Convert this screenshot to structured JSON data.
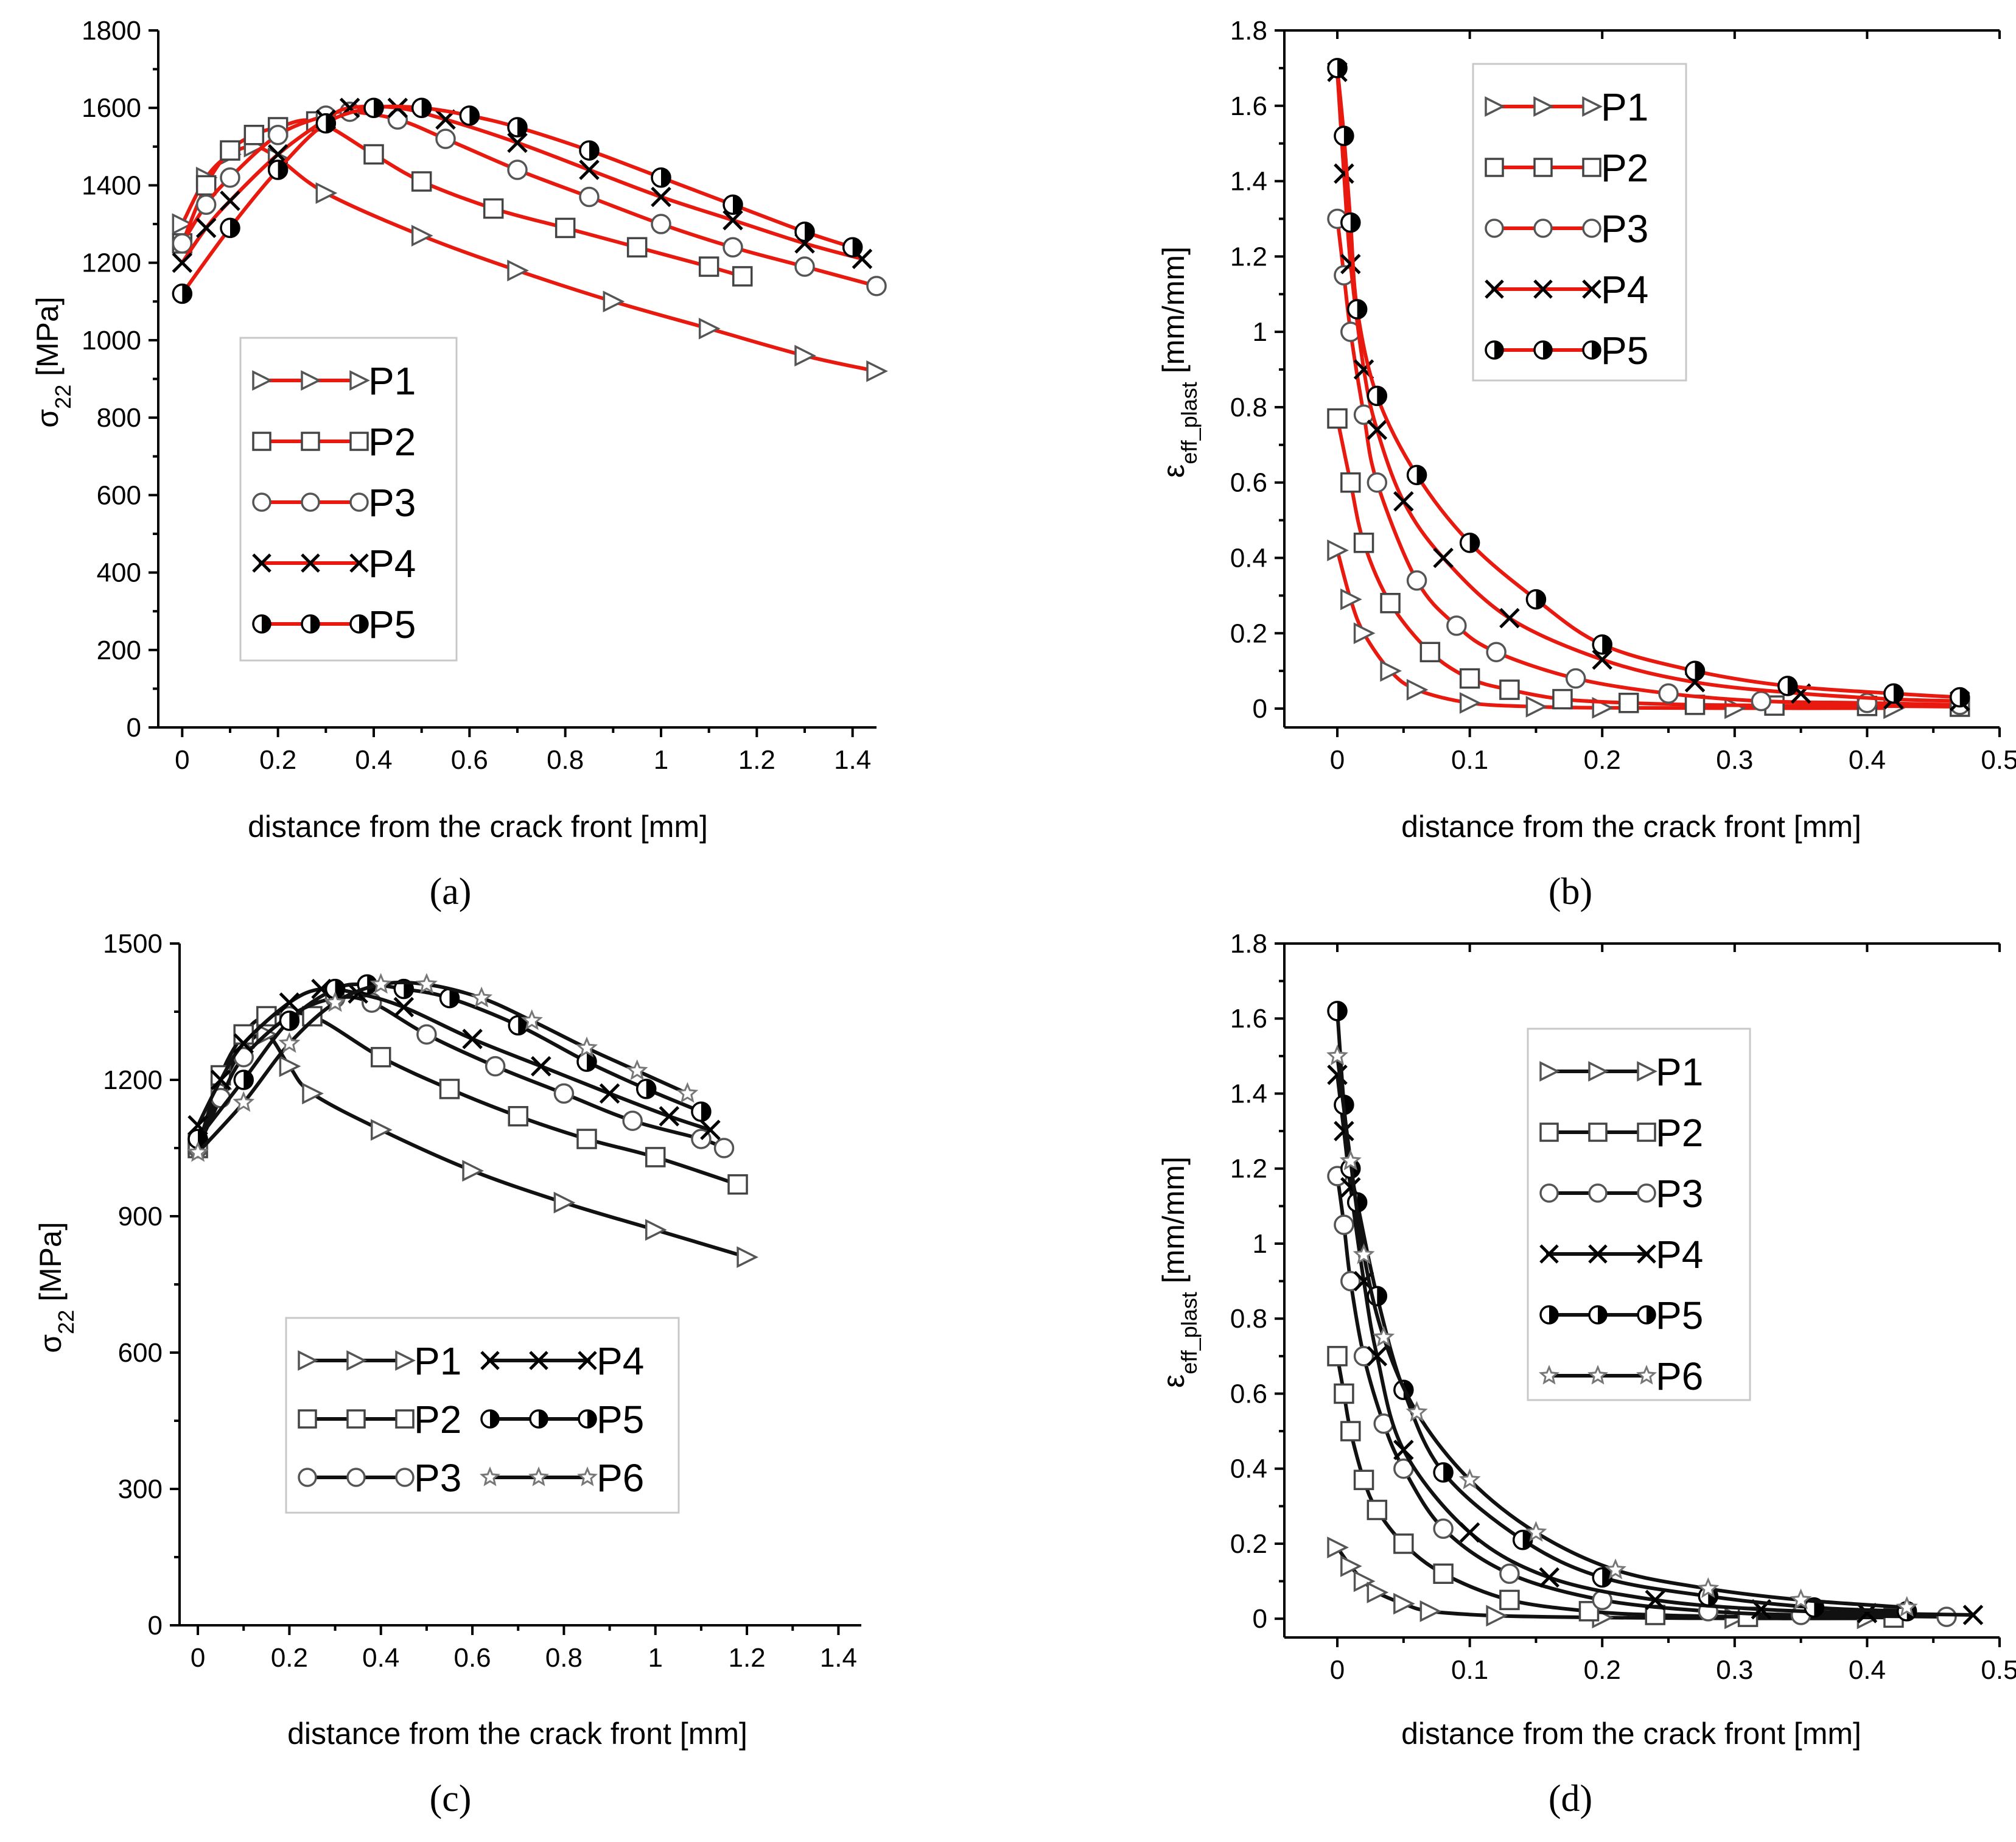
{
  "figure": {
    "background": "#ffffff"
  },
  "panels": [
    {
      "id": "a",
      "label": "(a)",
      "color": "#e8190f",
      "xlabel": "distance from the crack front [mm]",
      "ylabel_main": "σ",
      "ylabel_sub": "22",
      "ylabel_tail": " [MPa]",
      "xticks": [
        "0",
        "0.2",
        "0.4",
        "0.6",
        "0.8",
        "1",
        "1.2",
        "1.4"
      ],
      "yticks": [
        "0",
        "200",
        "400",
        "600",
        "800",
        "1000",
        "1200",
        "1400",
        "1600",
        "1800"
      ],
      "legend_items": [
        "P1",
        "P2",
        "P3",
        "P4",
        "P5"
      ]
    },
    {
      "id": "b",
      "label": "(b)",
      "color": "#e8190f",
      "xlabel": "distance from the crack front [mm]",
      "ylabel_main": "ε",
      "ylabel_sub": "eff_plast",
      "ylabel_tail": " [mm/mm]",
      "xticks": [
        "0",
        "0.1",
        "0.2",
        "0.3",
        "0.4",
        "0.5"
      ],
      "yticks": [
        "0",
        "0.2",
        "0.4",
        "0.6",
        "0.8",
        "1",
        "1.2",
        "1.4",
        "1.6",
        "1.8"
      ],
      "legend_items": [
        "P1",
        "P2",
        "P3",
        "P4",
        "P5"
      ]
    },
    {
      "id": "c",
      "label": "(c)",
      "color": "#111111",
      "xlabel": "distance from the crack front [mm]",
      "ylabel_main": "σ",
      "ylabel_sub": "22",
      "ylabel_tail": " [MPa]",
      "xticks": [
        "0",
        "0.2",
        "0.4",
        "0.6",
        "0.8",
        "1",
        "1.2",
        "1.4"
      ],
      "yticks": [
        "0",
        "300",
        "600",
        "900",
        "1200",
        "1500"
      ],
      "legend_items": [
        "P1",
        "P4",
        "P2",
        "P5",
        "P3",
        "P6"
      ]
    },
    {
      "id": "d",
      "label": "(d)",
      "color": "#111111",
      "xlabel": "distance from the crack front [mm]",
      "ylabel_main": "ε",
      "ylabel_sub": "eff_plast",
      "ylabel_tail": " [mm/mm]",
      "xticks": [
        "0",
        "0.1",
        "0.2",
        "0.3",
        "0.4",
        "0.5"
      ],
      "yticks": [
        "0",
        "0.2",
        "0.4",
        "0.6",
        "0.8",
        "1",
        "1.2",
        "1.4",
        "1.6",
        "1.8"
      ],
      "legend_items": [
        "P1",
        "P2",
        "P3",
        "P4",
        "P5",
        "P6"
      ]
    }
  ],
  "chart_data": [
    {
      "panel": "a",
      "type": "line",
      "title": "",
      "xlabel": "distance from the crack front [mm]",
      "ylabel": "σ22 [MPa]",
      "xlim": [
        -0.05,
        1.45
      ],
      "ylim": [
        0,
        1800
      ],
      "legend": "center-left",
      "series": [
        {
          "name": "P1",
          "marker": "triangle-right",
          "x": [
            0,
            0.05,
            0.1,
            0.15,
            0.2,
            0.3,
            0.5,
            0.7,
            0.9,
            1.1,
            1.3,
            1.45
          ],
          "y": [
            1300,
            1420,
            1480,
            1500,
            1470,
            1380,
            1270,
            1180,
            1100,
            1030,
            960,
            920
          ]
        },
        {
          "name": "P2",
          "marker": "square",
          "x": [
            0,
            0.05,
            0.1,
            0.15,
            0.2,
            0.28,
            0.4,
            0.5,
            0.65,
            0.8,
            0.95,
            1.1,
            1.17
          ],
          "y": [
            1250,
            1400,
            1490,
            1530,
            1550,
            1565,
            1480,
            1410,
            1340,
            1290,
            1240,
            1190,
            1165
          ]
        },
        {
          "name": "P3",
          "marker": "circle",
          "x": [
            0,
            0.05,
            0.1,
            0.2,
            0.3,
            0.35,
            0.45,
            0.55,
            0.7,
            0.85,
            1,
            1.15,
            1.3,
            1.45
          ],
          "y": [
            1250,
            1350,
            1420,
            1530,
            1580,
            1590,
            1570,
            1520,
            1440,
            1370,
            1300,
            1240,
            1190,
            1140
          ]
        },
        {
          "name": "P4",
          "marker": "x",
          "x": [
            0,
            0.05,
            0.1,
            0.2,
            0.3,
            0.35,
            0.45,
            0.55,
            0.7,
            0.85,
            1,
            1.15,
            1.3,
            1.42
          ],
          "y": [
            1200,
            1290,
            1360,
            1480,
            1570,
            1600,
            1600,
            1570,
            1510,
            1440,
            1370,
            1310,
            1250,
            1210
          ]
        },
        {
          "name": "P5",
          "marker": "half-circle",
          "x": [
            0,
            0.1,
            0.2,
            0.3,
            0.4,
            0.5,
            0.6,
            0.7,
            0.85,
            1,
            1.15,
            1.3,
            1.4
          ],
          "y": [
            1120,
            1290,
            1440,
            1560,
            1600,
            1600,
            1580,
            1550,
            1490,
            1420,
            1350,
            1280,
            1240
          ]
        }
      ]
    },
    {
      "panel": "b",
      "type": "line",
      "title": "",
      "xlabel": "distance from the crack front [mm]",
      "ylabel": "εeff_plast [mm/mm]",
      "xlim": [
        -0.04,
        0.5
      ],
      "ylim": [
        -0.05,
        1.8
      ],
      "legend": "top-center",
      "series": [
        {
          "name": "P1",
          "marker": "triangle-right",
          "x": [
            0,
            0.01,
            0.02,
            0.04,
            0.06,
            0.1,
            0.15,
            0.2,
            0.3,
            0.42
          ],
          "y": [
            0.42,
            0.29,
            0.2,
            0.1,
            0.05,
            0.015,
            0.005,
            0.002,
            0.001,
            0.001
          ]
        },
        {
          "name": "P2",
          "marker": "square",
          "x": [
            0,
            0.01,
            0.02,
            0.04,
            0.07,
            0.1,
            0.13,
            0.17,
            0.22,
            0.27,
            0.33,
            0.4,
            0.47
          ],
          "y": [
            0.77,
            0.6,
            0.44,
            0.28,
            0.15,
            0.08,
            0.05,
            0.025,
            0.015,
            0.01,
            0.008,
            0.007,
            0.005
          ]
        },
        {
          "name": "P3",
          "marker": "circle",
          "x": [
            0,
            0.005,
            0.01,
            0.02,
            0.03,
            0.06,
            0.09,
            0.12,
            0.18,
            0.25,
            0.32,
            0.4,
            0.47
          ],
          "y": [
            1.3,
            1.15,
            1.0,
            0.78,
            0.6,
            0.34,
            0.22,
            0.15,
            0.08,
            0.04,
            0.02,
            0.015,
            0.01
          ]
        },
        {
          "name": "P4",
          "marker": "x",
          "x": [
            0,
            0.005,
            0.01,
            0.02,
            0.03,
            0.05,
            0.08,
            0.13,
            0.2,
            0.27,
            0.35,
            0.42,
            0.47
          ],
          "y": [
            1.69,
            1.42,
            1.18,
            0.9,
            0.74,
            0.55,
            0.4,
            0.24,
            0.13,
            0.07,
            0.04,
            0.025,
            0.02
          ]
        },
        {
          "name": "P5",
          "marker": "half-circle",
          "x": [
            0,
            0.005,
            0.01,
            0.015,
            0.03,
            0.06,
            0.1,
            0.15,
            0.2,
            0.27,
            0.34,
            0.42,
            0.47
          ],
          "y": [
            1.7,
            1.52,
            1.29,
            1.06,
            0.83,
            0.62,
            0.44,
            0.29,
            0.17,
            0.1,
            0.06,
            0.04,
            0.03
          ]
        }
      ]
    },
    {
      "panel": "c",
      "type": "line",
      "title": "",
      "xlabel": "distance from the crack front [mm]",
      "ylabel": "σ22 [MPa]",
      "xlim": [
        -0.04,
        1.45
      ],
      "ylim": [
        0,
        1500
      ],
      "legend": "bottom-center",
      "series": [
        {
          "name": "P1",
          "marker": "triangle-right",
          "x": [
            0,
            0.05,
            0.1,
            0.15,
            0.2,
            0.25,
            0.4,
            0.6,
            0.8,
            1.0,
            1.2
          ],
          "y": [
            1060,
            1180,
            1270,
            1300,
            1230,
            1170,
            1090,
            1000,
            930,
            870,
            810
          ]
        },
        {
          "name": "P2",
          "marker": "square",
          "x": [
            0,
            0.05,
            0.1,
            0.15,
            0.25,
            0.4,
            0.55,
            0.7,
            0.85,
            1.0,
            1.18
          ],
          "y": [
            1050,
            1210,
            1300,
            1340,
            1340,
            1250,
            1180,
            1120,
            1070,
            1030,
            970
          ]
        },
        {
          "name": "P3",
          "marker": "circle",
          "x": [
            0,
            0.05,
            0.1,
            0.2,
            0.3,
            0.38,
            0.5,
            0.65,
            0.8,
            0.95,
            1.1,
            1.15
          ],
          "y": [
            1050,
            1160,
            1250,
            1340,
            1380,
            1370,
            1300,
            1230,
            1170,
            1110,
            1070,
            1050
          ]
        },
        {
          "name": "P4",
          "marker": "x",
          "x": [
            0,
            0.05,
            0.1,
            0.2,
            0.27,
            0.35,
            0.45,
            0.6,
            0.75,
            0.9,
            1.03,
            1.12
          ],
          "y": [
            1100,
            1200,
            1280,
            1370,
            1400,
            1390,
            1360,
            1290,
            1230,
            1170,
            1120,
            1090
          ]
        },
        {
          "name": "P5",
          "marker": "half-circle",
          "x": [
            0,
            0.1,
            0.2,
            0.3,
            0.37,
            0.45,
            0.55,
            0.7,
            0.85,
            0.98,
            1.1
          ],
          "y": [
            1070,
            1200,
            1330,
            1400,
            1410,
            1400,
            1380,
            1320,
            1240,
            1180,
            1130
          ]
        },
        {
          "name": "P6",
          "marker": "star",
          "x": [
            0,
            0.1,
            0.2,
            0.3,
            0.4,
            0.5,
            0.62,
            0.73,
            0.85,
            0.96,
            1.07
          ],
          "y": [
            1040,
            1150,
            1280,
            1370,
            1410,
            1410,
            1380,
            1330,
            1270,
            1220,
            1170
          ]
        }
      ]
    },
    {
      "panel": "d",
      "type": "line",
      "title": "",
      "xlabel": "distance from the crack front [mm]",
      "ylabel": "εeff_plast [mm/mm]",
      "xlim": [
        -0.04,
        0.5
      ],
      "ylim": [
        -0.05,
        1.8
      ],
      "legend": "top-center",
      "series": [
        {
          "name": "P1",
          "marker": "triangle-right",
          "x": [
            0,
            0.01,
            0.02,
            0.03,
            0.05,
            0.07,
            0.12,
            0.2,
            0.3,
            0.4
          ],
          "y": [
            0.19,
            0.14,
            0.1,
            0.07,
            0.04,
            0.02,
            0.008,
            0.003,
            0.001,
            0.001
          ]
        },
        {
          "name": "P2",
          "marker": "square",
          "x": [
            0,
            0.005,
            0.01,
            0.02,
            0.03,
            0.05,
            0.08,
            0.13,
            0.19,
            0.24,
            0.31,
            0.42
          ],
          "y": [
            0.7,
            0.6,
            0.5,
            0.37,
            0.29,
            0.2,
            0.12,
            0.05,
            0.02,
            0.01,
            0.005,
            0.003
          ]
        },
        {
          "name": "P3",
          "marker": "circle",
          "x": [
            0,
            0.005,
            0.01,
            0.02,
            0.035,
            0.05,
            0.08,
            0.13,
            0.2,
            0.28,
            0.35,
            0.46
          ],
          "y": [
            1.18,
            1.05,
            0.9,
            0.7,
            0.52,
            0.4,
            0.24,
            0.12,
            0.05,
            0.02,
            0.01,
            0.005
          ]
        },
        {
          "name": "P4",
          "marker": "x",
          "x": [
            0,
            0.005,
            0.01,
            0.02,
            0.03,
            0.05,
            0.1,
            0.16,
            0.24,
            0.32,
            0.4,
            0.48
          ],
          "y": [
            1.45,
            1.3,
            1.15,
            0.9,
            0.7,
            0.45,
            0.23,
            0.11,
            0.05,
            0.025,
            0.015,
            0.01
          ]
        },
        {
          "name": "P5",
          "marker": "half-circle",
          "x": [
            0,
            0.005,
            0.01,
            0.015,
            0.03,
            0.05,
            0.08,
            0.14,
            0.2,
            0.28,
            0.36,
            0.43
          ],
          "y": [
            1.62,
            1.37,
            1.2,
            1.11,
            0.86,
            0.61,
            0.39,
            0.21,
            0.11,
            0.06,
            0.03,
            0.02
          ]
        },
        {
          "name": "P6",
          "marker": "star",
          "x": [
            0,
            0.01,
            0.02,
            0.035,
            0.06,
            0.1,
            0.15,
            0.21,
            0.28,
            0.35,
            0.43
          ],
          "y": [
            1.5,
            1.22,
            0.97,
            0.75,
            0.55,
            0.37,
            0.23,
            0.13,
            0.08,
            0.05,
            0.03
          ]
        }
      ]
    }
  ]
}
